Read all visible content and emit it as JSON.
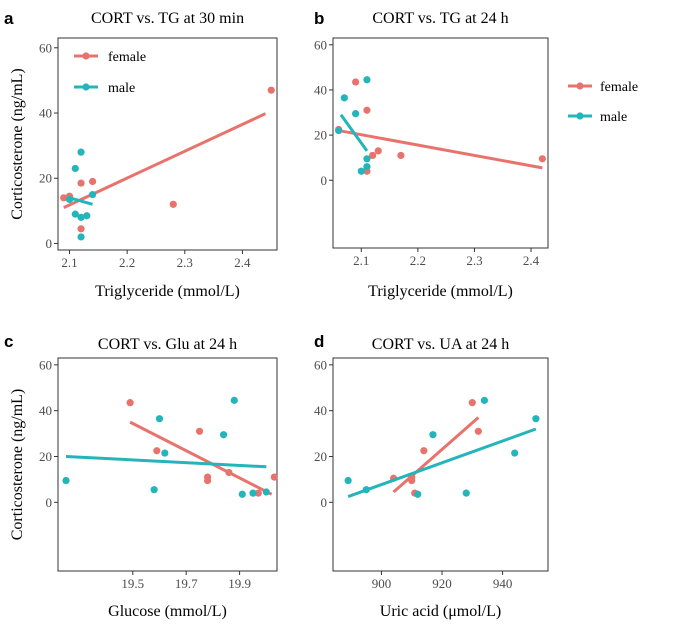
{
  "colors": {
    "female": "#E8736C",
    "male": "#22B5BA",
    "frame": "#333333",
    "tick_text": "#4d4d4d"
  },
  "ylabel_shared": "Corticosterone (ng/mL)",
  "chart_data": [
    {
      "letter": "a",
      "type": "scatter",
      "title": "CORT vs. TG at 30 min",
      "xlabel": "Triglyceride (mmol/L)",
      "ylabel": "Corticosterone (ng/mL)",
      "xlim": [
        2.08,
        2.46
      ],
      "ylim": [
        -2,
        63
      ],
      "xticks": [
        2.1,
        2.2,
        2.3,
        2.4
      ],
      "xtick_labels": [
        "2.1",
        "2.2",
        "2.3",
        "2.4"
      ],
      "yticks": [
        0,
        20,
        40,
        60
      ],
      "ytick_labels": [
        "0",
        "20",
        "40",
        "60"
      ],
      "legend": "top-left",
      "series": [
        {
          "name": "female",
          "color": "#E8736C",
          "points": [
            [
              2.09,
              14
            ],
            [
              2.1,
              14.5
            ],
            [
              2.12,
              18.5
            ],
            [
              2.14,
              19
            ],
            [
              2.12,
              4.5
            ],
            [
              2.28,
              12
            ],
            [
              2.45,
              47
            ]
          ],
          "fit": [
            [
              2.09,
              11
            ],
            [
              2.44,
              39.8
            ]
          ]
        },
        {
          "name": "male",
          "color": "#22B5BA",
          "points": [
            [
              2.1,
              13.5
            ],
            [
              2.11,
              23
            ],
            [
              2.12,
              28
            ],
            [
              2.11,
              9
            ],
            [
              2.12,
              8
            ],
            [
              2.13,
              8.5
            ],
            [
              2.12,
              2
            ],
            [
              2.14,
              15
            ]
          ],
          "fit": [
            [
              2.1,
              14
            ],
            [
              2.14,
              12
            ]
          ]
        }
      ]
    },
    {
      "letter": "b",
      "type": "scatter",
      "title": "CORT vs. TG at 24 h",
      "xlabel": "Triglyceride (mmol/L)",
      "ylabel": "",
      "xlim": [
        2.05,
        2.43
      ],
      "ylim": [
        -30,
        63
      ],
      "xticks": [
        2.1,
        2.2,
        2.3,
        2.4
      ],
      "xtick_labels": [
        "2.1",
        "2.2",
        "2.3",
        "2.4"
      ],
      "yticks": [
        0,
        20,
        40,
        60
      ],
      "ytick_labels": [
        "0",
        "20",
        "40",
        "60"
      ],
      "legend": "right",
      "series": [
        {
          "name": "female",
          "color": "#E8736C",
          "points": [
            [
              2.06,
              22.5
            ],
            [
              2.09,
              43.5
            ],
            [
              2.11,
              31
            ],
            [
              2.12,
              11
            ],
            [
              2.13,
              13
            ],
            [
              2.11,
              4
            ],
            [
              2.17,
              11
            ],
            [
              2.42,
              9.5
            ]
          ],
          "fit": [
            [
              2.06,
              22
            ],
            [
              2.42,
              5.5
            ]
          ]
        },
        {
          "name": "male",
          "color": "#22B5BA",
          "points": [
            [
              2.06,
              22
            ],
            [
              2.07,
              36.5
            ],
            [
              2.09,
              29.5
            ],
            [
              2.11,
              44.5
            ],
            [
              2.1,
              4
            ],
            [
              2.11,
              9.5
            ],
            [
              2.11,
              6
            ]
          ],
          "fit": [
            [
              2.064,
              29
            ],
            [
              2.11,
              13
            ]
          ]
        }
      ]
    },
    {
      "letter": "c",
      "type": "scatter",
      "title": "CORT vs. Glu at 24 h",
      "xlabel": "Glucose (mmol/L)",
      "ylabel": "Corticosterone (ng/mL)",
      "xlim": [
        19.22,
        20.04
      ],
      "ylim": [
        -30,
        63
      ],
      "xticks": [
        19.5,
        19.7,
        19.9
      ],
      "xtick_labels": [
        "19.5",
        "19.7",
        "19.9"
      ],
      "yticks": [
        0,
        20,
        40,
        60
      ],
      "ytick_labels": [
        "0",
        "20",
        "40",
        "60"
      ],
      "legend": "none",
      "series": [
        {
          "name": "female",
          "color": "#E8736C",
          "points": [
            [
              19.49,
              43.5
            ],
            [
              19.59,
              22.5
            ],
            [
              19.75,
              31
            ],
            [
              19.78,
              11
            ],
            [
              19.78,
              9.5
            ],
            [
              19.86,
              13
            ],
            [
              19.97,
              4
            ],
            [
              20.03,
              11
            ]
          ],
          "fit": [
            [
              19.49,
              35
            ],
            [
              20.02,
              3.5
            ]
          ]
        },
        {
          "name": "male",
          "color": "#22B5BA",
          "points": [
            [
              19.25,
              9.5
            ],
            [
              19.58,
              5.5
            ],
            [
              19.6,
              36.5
            ],
            [
              19.62,
              21.5
            ],
            [
              19.84,
              29.5
            ],
            [
              19.88,
              44.5
            ],
            [
              19.91,
              3.5
            ],
            [
              19.95,
              4
            ],
            [
              20.0,
              4.5
            ]
          ],
          "fit": [
            [
              19.25,
              20
            ],
            [
              20.0,
              15.5
            ]
          ]
        }
      ]
    },
    {
      "letter": "d",
      "type": "scatter",
      "title": "CORT vs. UA at 24 h",
      "xlabel": "Uric acid (μmol/L)",
      "ylabel": "",
      "xlim": [
        884,
        955
      ],
      "ylim": [
        -30,
        63
      ],
      "xticks": [
        900,
        920,
        940
      ],
      "xtick_labels": [
        "900",
        "920",
        "940"
      ],
      "yticks": [
        0,
        20,
        40,
        60
      ],
      "ytick_labels": [
        "0",
        "20",
        "40",
        "60"
      ],
      "legend": "none",
      "series": [
        {
          "name": "female",
          "color": "#E8736C",
          "points": [
            [
              904,
              10.5
            ],
            [
              910,
              9.5
            ],
            [
              910,
              11
            ],
            [
              911,
              4
            ],
            [
              914,
              22.5
            ],
            [
              930,
              43.5
            ],
            [
              932,
              31
            ]
          ],
          "fit": [
            [
              904,
              4.5
            ],
            [
              932,
              37
            ]
          ]
        },
        {
          "name": "male",
          "color": "#22B5BA",
          "points": [
            [
              889,
              9.5
            ],
            [
              895,
              5.5
            ],
            [
              912,
              3.5
            ],
            [
              917,
              29.5
            ],
            [
              928,
              4
            ],
            [
              934,
              44.5
            ],
            [
              944,
              21.5
            ],
            [
              951,
              36.5
            ]
          ],
          "fit": [
            [
              889,
              2.5
            ],
            [
              951,
              32
            ]
          ]
        }
      ]
    }
  ]
}
